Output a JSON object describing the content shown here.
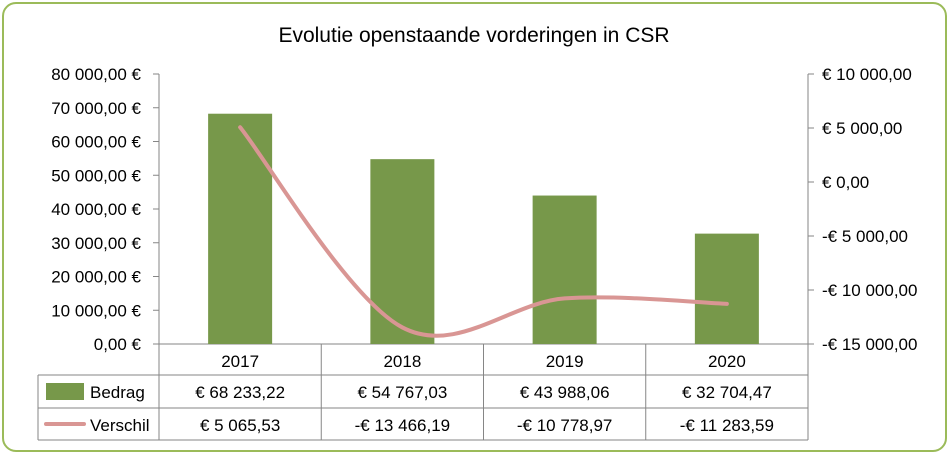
{
  "chart_data": {
    "type": "bar",
    "title": "Evolutie openstaande vorderingen in CSR",
    "categories": [
      "2017",
      "2018",
      "2019",
      "2020"
    ],
    "series": [
      {
        "name": "Bedrag",
        "kind": "bar",
        "axis": "left",
        "color": "#77984a",
        "values": [
          68233.22,
          54767.03,
          43988.06,
          32704.47
        ],
        "labels": [
          "€ 68 233,22",
          "€ 54 767,03",
          "€ 43 988,06",
          "€ 32 704,47"
        ]
      },
      {
        "name": "Verschil",
        "kind": "line",
        "axis": "right",
        "color": "#d99694",
        "smooth": true,
        "values": [
          5065.53,
          -13466.19,
          -10778.97,
          -11283.59
        ],
        "labels": [
          "€ 5 065,53",
          "-€ 13 466,19",
          "-€ 10 778,97",
          "-€ 11 283,59"
        ]
      }
    ],
    "y_left": {
      "ylim": [
        0,
        80000
      ],
      "ticks": [
        0,
        10000,
        20000,
        30000,
        40000,
        50000,
        60000,
        70000,
        80000
      ],
      "tick_labels": [
        "0,00 €",
        "10 000,00 €",
        "20 000,00 €",
        "30 000,00 €",
        "40 000,00 €",
        "50 000,00 €",
        "60 000,00 €",
        "70 000,00 €",
        "80 000,00 €"
      ]
    },
    "y_right": {
      "ylim": [
        -15000,
        10000
      ],
      "ticks": [
        -15000,
        -10000,
        -5000,
        0,
        5000,
        10000
      ],
      "tick_labels": [
        "-€ 15 000,00",
        "-€ 10 000,00",
        "-€ 5 000,00",
        "€  0,00",
        "€ 5 000,00",
        "€ 10 000,00"
      ]
    },
    "legend": "data-table",
    "grid": false
  }
}
